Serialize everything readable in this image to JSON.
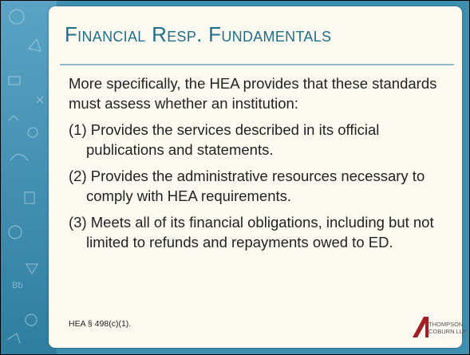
{
  "header": {
    "title": "Financial Resp. Fundamentals"
  },
  "body": {
    "intro": "More specifically, the HEA provides that these standards must assess whether an institution:",
    "items": [
      "(1) Provides the services described in its official publications and statements.",
      "(2) Provides the administrative resources necessary to comply with HEA requirements.",
      "(3) Meets all of its financial obligations, including but not limited to refunds and repayments owed to ED."
    ]
  },
  "footer": {
    "citation": "HEA § 498(c)(1)."
  },
  "logo": {
    "lines": [
      "THOMPSON",
      "COBURN LLP"
    ]
  }
}
